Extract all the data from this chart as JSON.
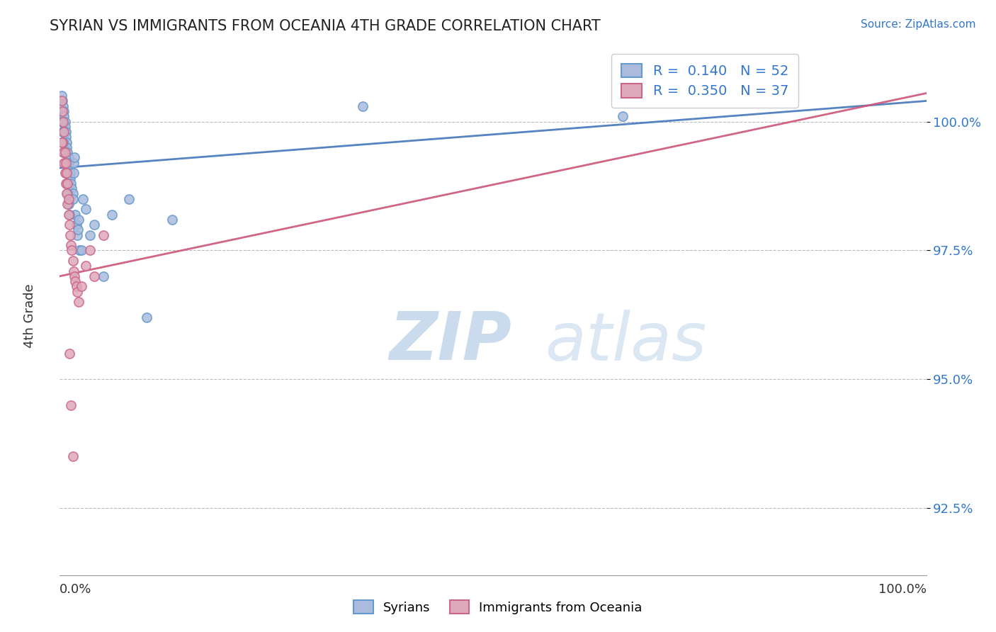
{
  "title": "SYRIAN VS IMMIGRANTS FROM OCEANIA 4TH GRADE CORRELATION CHART",
  "source": "Source: ZipAtlas.com",
  "ylabel": "4th Grade",
  "y_ticks": [
    92.5,
    95.0,
    97.5,
    100.0
  ],
  "y_tick_labels": [
    "92.5%",
    "95.0%",
    "97.5%",
    "100.0%"
  ],
  "xmin": 0.0,
  "xmax": 1.0,
  "ymin": 91.2,
  "ymax": 101.5,
  "blue_line": [
    0.0,
    1.0,
    99.1,
    100.4
  ],
  "pink_line": [
    0.0,
    1.0,
    97.0,
    100.55
  ],
  "series": [
    {
      "name": "Syrians",
      "edge_color": "#6699cc",
      "face_color": "#aabbdd",
      "R": 0.14,
      "N": 52,
      "points_x": [
        0.003,
        0.004,
        0.005,
        0.005,
        0.006,
        0.006,
        0.007,
        0.007,
        0.008,
        0.008,
        0.009,
        0.01,
        0.01,
        0.011,
        0.012,
        0.012,
        0.013,
        0.014,
        0.015,
        0.015,
        0.016,
        0.016,
        0.017,
        0.018,
        0.019,
        0.02,
        0.021,
        0.022,
        0.023,
        0.025,
        0.027,
        0.03,
        0.035,
        0.04,
        0.05,
        0.06,
        0.08,
        0.1,
        0.13,
        0.003,
        0.004,
        0.005,
        0.006,
        0.007,
        0.008,
        0.009,
        0.01,
        0.011,
        0.35,
        0.65,
        0.002,
        0.002
      ],
      "points_y": [
        100.4,
        100.3,
        100.2,
        100.1,
        100.0,
        99.9,
        99.8,
        99.7,
        99.6,
        99.5,
        99.4,
        99.3,
        99.2,
        99.1,
        99.0,
        98.9,
        98.8,
        98.7,
        98.6,
        98.5,
        99.0,
        99.2,
        99.3,
        98.2,
        98.0,
        97.8,
        97.9,
        98.1,
        97.5,
        97.5,
        98.5,
        98.3,
        97.8,
        98.0,
        97.0,
        98.2,
        98.5,
        96.2,
        98.1,
        99.8,
        99.6,
        99.4,
        99.2,
        99.0,
        98.8,
        98.6,
        98.4,
        98.2,
        100.3,
        100.1,
        100.5,
        100.0
      ]
    },
    {
      "name": "Immigrants from Oceania",
      "edge_color": "#cc6688",
      "face_color": "#ddaabb",
      "R": 0.35,
      "N": 37,
      "points_x": [
        0.003,
        0.004,
        0.005,
        0.006,
        0.007,
        0.008,
        0.009,
        0.01,
        0.011,
        0.012,
        0.013,
        0.014,
        0.015,
        0.016,
        0.017,
        0.018,
        0.019,
        0.02,
        0.022,
        0.025,
        0.03,
        0.035,
        0.04,
        0.05,
        0.003,
        0.004,
        0.005,
        0.006,
        0.007,
        0.008,
        0.009,
        0.01,
        0.011,
        0.013,
        0.015,
        0.002,
        0.002
      ],
      "points_y": [
        99.6,
        99.4,
        99.2,
        99.0,
        98.8,
        98.6,
        98.4,
        98.2,
        98.0,
        97.8,
        97.6,
        97.5,
        97.3,
        97.1,
        97.0,
        96.9,
        96.8,
        96.7,
        96.5,
        96.8,
        97.2,
        97.5,
        97.0,
        97.8,
        100.2,
        100.0,
        99.8,
        99.4,
        99.2,
        99.0,
        98.8,
        98.5,
        95.5,
        94.5,
        93.5,
        99.6,
        100.4
      ]
    }
  ],
  "watermark_zip": "ZIP",
  "watermark_atlas": "atlas"
}
